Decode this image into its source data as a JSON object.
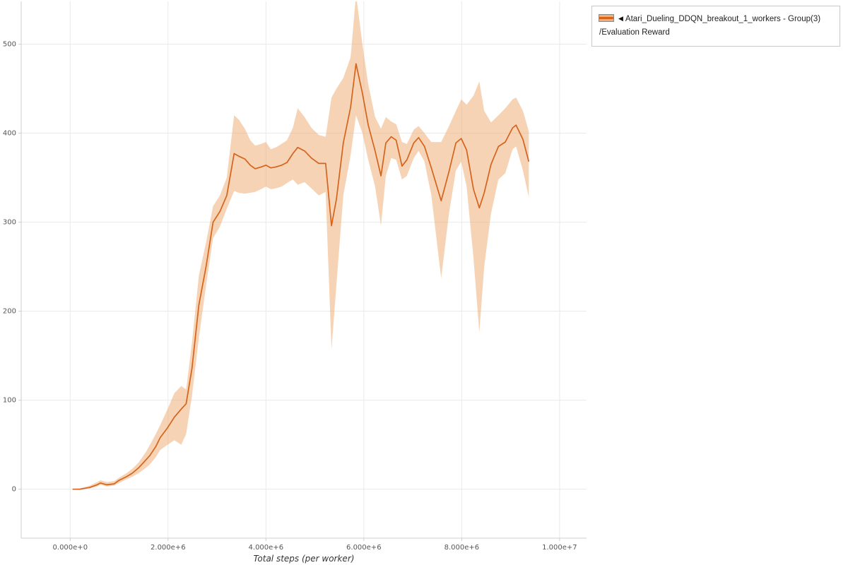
{
  "legend": {
    "marker": "◀",
    "series_label": "Atari_Dueling_DDQN_breakout_1_workers - Group(3)",
    "metric_label": "/Evaluation Reward"
  },
  "chart_data": {
    "type": "line",
    "title": "",
    "xlabel": "Total steps (per worker)",
    "ylabel": "",
    "grid": true,
    "legend_position": "top-right-outside",
    "xlim": [
      -1000000,
      10550000
    ],
    "ylim": [
      -55,
      548
    ],
    "x_ticks": [
      0,
      2000000,
      4000000,
      6000000,
      8000000,
      10000000
    ],
    "x_tick_labels": [
      "0.000e+0",
      "2.000e+6",
      "4.000e+6",
      "6.000e+6",
      "8.000e+6",
      "1.000e+7"
    ],
    "y_ticks": [
      0,
      100,
      200,
      300,
      400,
      500
    ],
    "line_color": "#d4641c",
    "band_color": "#f0ae78",
    "series": [
      {
        "name": "Atari_Dueling_DDQN_breakout_1_workers - Group(3)/Evaluation Reward",
        "x": [
          50000,
          200000,
          400000,
          550000,
          620000,
          750000,
          900000,
          1000000,
          1150000,
          1270000,
          1400000,
          1550000,
          1630000,
          1750000,
          1840000,
          1990000,
          2130000,
          2270000,
          2370000,
          2490000,
          2630000,
          2780000,
          2920000,
          3060000,
          3200000,
          3350000,
          3450000,
          3570000,
          3680000,
          3780000,
          3900000,
          4000000,
          4100000,
          4200000,
          4320000,
          4430000,
          4550000,
          4650000,
          4790000,
          4930000,
          5080000,
          5220000,
          5340000,
          5440000,
          5580000,
          5730000,
          5840000,
          5970000,
          6090000,
          6230000,
          6350000,
          6450000,
          6560000,
          6660000,
          6780000,
          6880000,
          7020000,
          7120000,
          7240000,
          7380000,
          7580000,
          7740000,
          7880000,
          7990000,
          8100000,
          8240000,
          8360000,
          8460000,
          8600000,
          8750000,
          8890000,
          9040000,
          9110000,
          9250000,
          9370000
        ],
        "mean": [
          0,
          0,
          2,
          5,
          7,
          5,
          6,
          10,
          14,
          18,
          24,
          33,
          38,
          48,
          58,
          69,
          81,
          90,
          96,
          136,
          207,
          251,
          300,
          312,
          330,
          377,
          374,
          371,
          364,
          360,
          362,
          364,
          361,
          362,
          364,
          367,
          377,
          384,
          380,
          372,
          366,
          366,
          296,
          326,
          389,
          429,
          478,
          445,
          409,
          380,
          352,
          389,
          396,
          392,
          363,
          370,
          389,
          395,
          385,
          361,
          324,
          357,
          389,
          394,
          381,
          337,
          316,
          333,
          365,
          385,
          390,
          406,
          409,
          393,
          368
        ],
        "lower": [
          0,
          0,
          1,
          3,
          5,
          3,
          4,
          7,
          11,
          14,
          18,
          24,
          28,
          36,
          44,
          50,
          55,
          50,
          62,
          105,
          170,
          230,
          282,
          295,
          315,
          335,
          333,
          332,
          333,
          334,
          337,
          340,
          337,
          338,
          340,
          344,
          348,
          342,
          345,
          338,
          330,
          334,
          157,
          230,
          330,
          375,
          420,
          400,
          370,
          340,
          296,
          352,
          372,
          370,
          348,
          352,
          372,
          380,
          368,
          330,
          237,
          310,
          358,
          368,
          340,
          260,
          176,
          250,
          310,
          348,
          355,
          382,
          385,
          358,
          328
        ],
        "upper": [
          0,
          1,
          4,
          8,
          10,
          8,
          9,
          13,
          18,
          23,
          30,
          42,
          50,
          62,
          72,
          90,
          108,
          116,
          112,
          165,
          240,
          278,
          318,
          330,
          350,
          420,
          415,
          405,
          392,
          386,
          388,
          390,
          382,
          384,
          388,
          392,
          406,
          428,
          418,
          406,
          398,
          396,
          440,
          450,
          462,
          485,
          556,
          500,
          455,
          418,
          405,
          418,
          413,
          410,
          390,
          388,
          404,
          408,
          400,
          390,
          390,
          408,
          425,
          438,
          432,
          442,
          458,
          425,
          412,
          420,
          428,
          438,
          440,
          425,
          402
        ]
      }
    ]
  }
}
